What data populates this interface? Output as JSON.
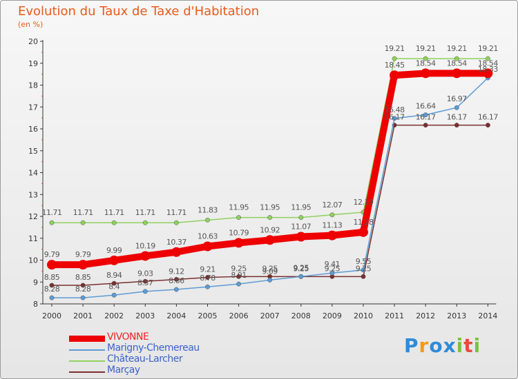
{
  "chart_data": {
    "type": "line",
    "title": "Evolution du Taux de Taxe d'Habitation",
    "subtitle": "(en %)",
    "xlabel": "",
    "ylabel": "",
    "ylim": [
      8,
      20
    ],
    "yticks": [
      "8",
      "9",
      "10",
      "11",
      "12",
      "13",
      "14",
      "15",
      "16",
      "17",
      "18",
      "19",
      "20"
    ],
    "x": [
      "2000",
      "2001",
      "2002",
      "2003",
      "2004",
      "2005",
      "2006",
      "2007",
      "2008",
      "2009",
      "2010",
      "2011",
      "2012",
      "2013",
      "2014"
    ],
    "grid": false,
    "legend_position": "bottom-left",
    "series": [
      {
        "name": "VIVONNE",
        "color": "#ee0000",
        "values": [
          9.79,
          9.79,
          9.99,
          10.19,
          10.37,
          10.63,
          10.79,
          10.92,
          11.07,
          11.13,
          11.28,
          18.45,
          18.54,
          18.54,
          18.54
        ],
        "labels": [
          "9.79",
          "9.79",
          "9.99",
          "10.19",
          "10.37",
          "10.63",
          "10.79",
          "10.92",
          "11.07",
          "11.13",
          "11.28",
          "18.45",
          "18.54",
          "18.54",
          "18.54"
        ]
      },
      {
        "name": "Marigny-Chemereau",
        "color": "#5b9bd5",
        "values": [
          8.28,
          8.28,
          8.4,
          8.57,
          8.66,
          8.78,
          8.91,
          9.09,
          9.25,
          9.41,
          9.55,
          16.48,
          16.64,
          16.97,
          18.33
        ],
        "labels": [
          "8.28",
          "8.28",
          "8.4",
          "8.57",
          "8.66",
          "8.78",
          "8.91",
          "9.09",
          "9.25",
          "9.41",
          "9.55",
          "16.48",
          "16.64",
          "16.97",
          "18.33"
        ]
      },
      {
        "name": "Château-Larcher",
        "color": "#8ed15e",
        "values": [
          11.71,
          11.71,
          11.71,
          11.71,
          11.71,
          11.83,
          11.95,
          11.95,
          11.95,
          12.07,
          12.19,
          19.21,
          19.21,
          19.21,
          19.21
        ],
        "labels": [
          "11.71",
          "11.71",
          "11.71",
          "11.71",
          "11.71",
          "11.83",
          "11.95",
          "11.95",
          "11.95",
          "12.07",
          "12.19",
          "19.21",
          "19.21",
          "19.21",
          "19.21"
        ]
      },
      {
        "name": "Marçay",
        "color": "#7a2e2e",
        "values": [
          8.85,
          8.85,
          8.94,
          9.03,
          9.12,
          9.21,
          9.25,
          9.25,
          9.25,
          9.25,
          9.25,
          16.17,
          16.17,
          16.17,
          16.17
        ],
        "labels": [
          "8.85",
          "8.85",
          "8.94",
          "9.03",
          "9.12",
          "9.21",
          "9.25",
          "9.25",
          "9.25",
          "9.25",
          "9.25",
          "16.17",
          "16.17",
          "16.17",
          "16.17"
        ]
      }
    ]
  },
  "brand": {
    "letters": [
      "P",
      "r",
      "o",
      "x",
      "i",
      "t",
      "i"
    ],
    "colors": [
      "#2e8bd8",
      "#f39c12",
      "#2e8bd8",
      "#2e8bd8",
      "#7ac143",
      "#e74c3c",
      "#7ac143"
    ]
  }
}
